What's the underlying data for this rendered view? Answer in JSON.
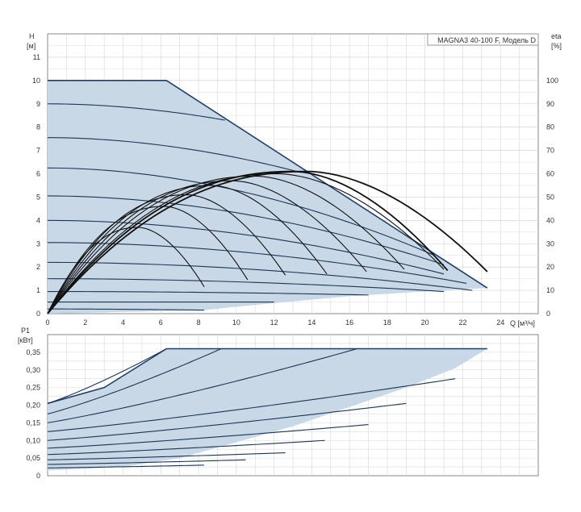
{
  "chart_data": [
    {
      "type": "line",
      "title": "MAGNA3 40-100 F, Модель D",
      "ylabel": "H",
      "yunit": "[м]",
      "y2label": "eta",
      "y2unit": "[%]",
      "xlabel": "Q [м³/ч]",
      "xlim": [
        0,
        26
      ],
      "ylim": [
        0,
        12
      ],
      "y2lim": [
        0,
        120
      ],
      "grid": true,
      "x_ticks": [
        "0",
        "2",
        "4",
        "6",
        "8",
        "10",
        "12",
        "14",
        "16",
        "18",
        "20",
        "22",
        "24"
      ],
      "y_ticks": [
        "0",
        "1",
        "2",
        "3",
        "4",
        "5",
        "6",
        "7",
        "8",
        "9",
        "10",
        "11"
      ],
      "y2_ticks": [
        "0",
        "10",
        "20",
        "30",
        "40",
        "50",
        "60",
        "70",
        "80",
        "90",
        "100"
      ],
      "area_color": "#c9d8e6",
      "boundary_color": "#1f3f66",
      "curve_color": "#1c3556",
      "envelope": [
        [
          0,
          10
        ],
        [
          6.3,
          10
        ],
        [
          23.3,
          1.1
        ],
        [
          22,
          1.05
        ],
        [
          20,
          0.95
        ],
        [
          18,
          0.85
        ],
        [
          16,
          0.75
        ],
        [
          14,
          0.6
        ],
        [
          12,
          0.45
        ],
        [
          10,
          0.3
        ],
        [
          8.3,
          0.15
        ],
        [
          0,
          0
        ]
      ],
      "head_curves": [
        {
          "h0": 9.0,
          "q_end": 9.4,
          "h_end": 8.3
        },
        {
          "h0": 7.55,
          "q_end": 13.2,
          "h_end": 6.1
        },
        {
          "h0": 6.25,
          "q_end": 20.5,
          "h_end": 2.5
        },
        {
          "h0": 5.05,
          "q_end": 21.0,
          "h_end": 2.1
        },
        {
          "h0": 4.0,
          "q_end": 21.0,
          "h_end": 1.7
        },
        {
          "h0": 3.05,
          "q_end": 22.2,
          "h_end": 1.3
        },
        {
          "h0": 2.2,
          "q_end": 22.5,
          "h_end": 1.0
        },
        {
          "h0": 1.5,
          "q_end": 21.0,
          "h_end": 0.95
        },
        {
          "h0": 0.95,
          "q_end": 17.0,
          "h_end": 0.8
        },
        {
          "h0": 0.5,
          "q_end": 12.0,
          "h_end": 0.5
        },
        {
          "h0": 0.2,
          "q_end": 8.3,
          "h_end": 0.15
        }
      ],
      "efficiency_curves": [
        {
          "q_end": 8.3,
          "peak_q": 4.8,
          "peak_eta": 37,
          "end_eta": 11.5
        },
        {
          "q_end": 10.6,
          "peak_q": 6.2,
          "peak_eta": 46,
          "end_eta": 14.5
        },
        {
          "q_end": 12.6,
          "peak_q": 7.4,
          "peak_eta": 51,
          "end_eta": 16.5
        },
        {
          "q_end": 14.8,
          "peak_q": 8.7,
          "peak_eta": 55,
          "end_eta": 17.0
        },
        {
          "q_end": 16.9,
          "peak_q": 9.8,
          "peak_eta": 57,
          "end_eta": 18.0
        },
        {
          "q_end": 18.9,
          "peak_q": 11.0,
          "peak_eta": 59,
          "end_eta": 19.0
        },
        {
          "q_end": 21.0,
          "peak_q": 12.2,
          "peak_eta": 60,
          "end_eta": 19.0
        },
        {
          "q_end": 21.2,
          "peak_q": 13.0,
          "peak_eta": 61,
          "end_eta": 18.5
        },
        {
          "q_end": 23.3,
          "peak_q": 13.8,
          "peak_eta": 61,
          "end_eta": 18.0
        }
      ]
    },
    {
      "type": "line",
      "ylabel": "P1",
      "yunit": "[кВт]",
      "xlim": [
        0,
        26
      ],
      "ylim": [
        0,
        0.4
      ],
      "grid": true,
      "y_ticks": [
        "0",
        "0,05",
        "0,10",
        "0,15",
        "0,20",
        "0,25",
        "0,30",
        "0,35"
      ],
      "area_color": "#c9d8e6",
      "envelope": [
        [
          0,
          0.205
        ],
        [
          3,
          0.25
        ],
        [
          6.3,
          0.36
        ],
        [
          23.3,
          0.36
        ],
        [
          21.6,
          0.305
        ],
        [
          19,
          0.25
        ],
        [
          16,
          0.195
        ],
        [
          13,
          0.14
        ],
        [
          10,
          0.095
        ],
        [
          7,
          0.05
        ],
        [
          4,
          0.025
        ],
        [
          0,
          0.015
        ]
      ],
      "power_curves": [
        {
          "p0": 0.205,
          "q_end": 6.3,
          "p_end": 0.36
        },
        {
          "p0": 0.175,
          "q_end": 9.2,
          "p_end": 0.36
        },
        {
          "p0": 0.15,
          "q_end": 16.4,
          "p_end": 0.36
        },
        {
          "p0": 0.125,
          "q_end": 21.6,
          "p_end": 0.275
        },
        {
          "p0": 0.1,
          "q_end": 19.0,
          "p_end": 0.205
        },
        {
          "p0": 0.078,
          "q_end": 17.0,
          "p_end": 0.145
        },
        {
          "p0": 0.06,
          "q_end": 14.7,
          "p_end": 0.1
        },
        {
          "p0": 0.045,
          "q_end": 12.6,
          "p_end": 0.065
        },
        {
          "p0": 0.032,
          "q_end": 10.5,
          "p_end": 0.045
        },
        {
          "p0": 0.022,
          "q_end": 8.3,
          "p_end": 0.03
        }
      ]
    }
  ]
}
